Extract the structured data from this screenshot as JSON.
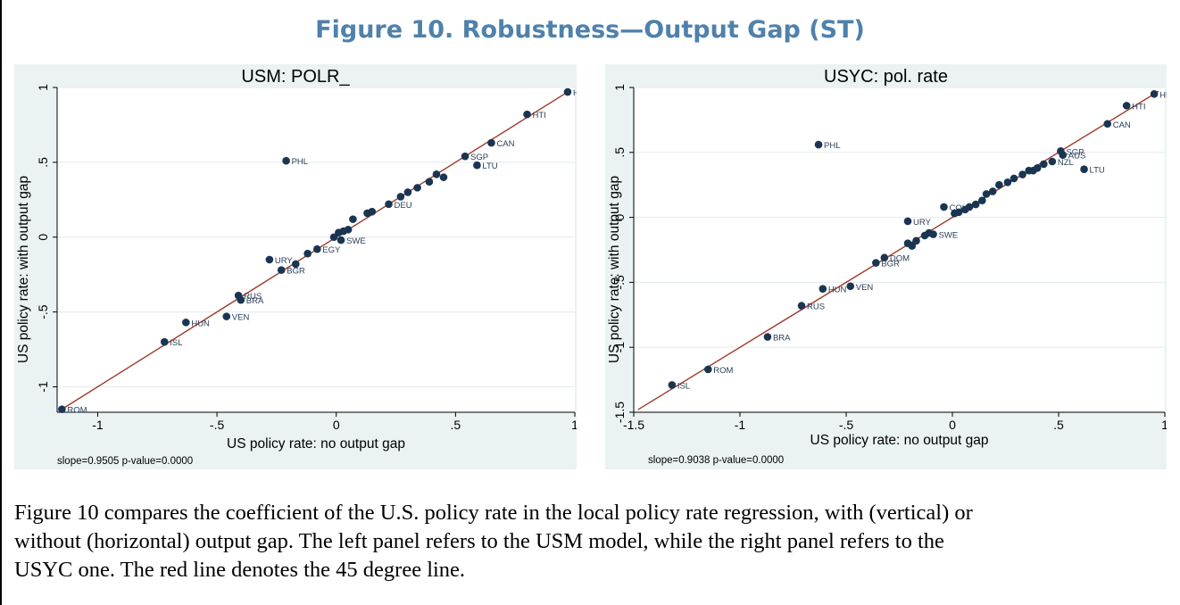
{
  "figure": {
    "title": "Figure 10. Robustness—Output Gap (ST)",
    "caption_lines": [
      "Figure 10 compares the coefficient of the U.S. policy rate in the local policy rate regression, with (vertical) or",
      "without (horizontal) output gap. The left panel refers to the USM model, while the right panel refers to the",
      "USYC one. The red line denotes the 45 degree line."
    ]
  },
  "colors": {
    "panel_bg": "#eaf2f3",
    "marker": "#1a3552",
    "fit_line": "#a03a2c",
    "title": "#4f81ab"
  },
  "chart_data": [
    {
      "type": "scatter",
      "title": "USM: POLR_",
      "xlabel": "US policy rate: no output gap",
      "ylabel": "US policy rate: with output gap",
      "xlim": [
        -1.17,
        1.0
      ],
      "ylim": [
        -1.17,
        1.0
      ],
      "xticks": [
        "-1",
        "-.5",
        "0",
        ".5",
        "1"
      ],
      "yticks": [
        "-1",
        "-.5",
        "0",
        ".5",
        "1"
      ],
      "xtick_values": [
        -1,
        -0.5,
        0,
        0.5,
        1
      ],
      "ytick_values": [
        -1,
        -0.5,
        0,
        0.5,
        1
      ],
      "grid": true,
      "reference_line": "45-degree",
      "note": "slope=0.9505 p-value=0.0000",
      "points": [
        {
          "label": "HKG",
          "x": 0.97,
          "y": 0.97
        },
        {
          "label": "HTI",
          "x": 0.8,
          "y": 0.82
        },
        {
          "label": "CAN",
          "x": 0.65,
          "y": 0.63
        },
        {
          "label": "SGP",
          "x": 0.54,
          "y": 0.54
        },
        {
          "label": "LTU",
          "x": 0.59,
          "y": 0.48
        },
        {
          "label": "PHL",
          "x": -0.21,
          "y": 0.51
        },
        {
          "label": "URY",
          "x": -0.28,
          "y": -0.15
        },
        {
          "label": "BGR",
          "x": -0.23,
          "y": -0.22
        },
        {
          "label": "RUS",
          "x": -0.41,
          "y": -0.39
        },
        {
          "label": "BRA",
          "x": -0.4,
          "y": -0.42
        },
        {
          "label": "VEN",
          "x": -0.46,
          "y": -0.53
        },
        {
          "label": "HUN",
          "x": -0.63,
          "y": -0.57
        },
        {
          "label": "ISL",
          "x": -0.72,
          "y": -0.7
        },
        {
          "label": "ROM",
          "x": -1.15,
          "y": -1.15
        },
        {
          "label": "EGY",
          "x": -0.08,
          "y": -0.08
        },
        {
          "label": "DEU",
          "x": 0.22,
          "y": 0.22
        },
        {
          "label": "SWE",
          "x": 0.02,
          "y": -0.02
        },
        {
          "label": "",
          "x": -0.12,
          "y": -0.11
        },
        {
          "label": "",
          "x": -0.17,
          "y": -0.18
        },
        {
          "label": "",
          "x": -0.01,
          "y": 0.0
        },
        {
          "label": "",
          "x": 0.01,
          "y": 0.03
        },
        {
          "label": "",
          "x": 0.03,
          "y": 0.04
        },
        {
          "label": "",
          "x": 0.05,
          "y": 0.05
        },
        {
          "label": "",
          "x": 0.07,
          "y": 0.12
        },
        {
          "label": "",
          "x": 0.13,
          "y": 0.16
        },
        {
          "label": "",
          "x": 0.15,
          "y": 0.17
        },
        {
          "label": "",
          "x": 0.27,
          "y": 0.27
        },
        {
          "label": "",
          "x": 0.3,
          "y": 0.3
        },
        {
          "label": "",
          "x": 0.34,
          "y": 0.33
        },
        {
          "label": "",
          "x": 0.39,
          "y": 0.37
        },
        {
          "label": "",
          "x": 0.42,
          "y": 0.42
        },
        {
          "label": "",
          "x": 0.45,
          "y": 0.4
        }
      ]
    },
    {
      "type": "scatter",
      "title": "USYC: pol. rate",
      "xlabel": "US policy rate: no output gap",
      "ylabel": "US policy rate: with output gap",
      "xlim": [
        -1.5,
        1.0
      ],
      "ylim": [
        -1.5,
        1.0
      ],
      "xticks": [
        "-1.5",
        "-1",
        "-.5",
        "0",
        ".5",
        "1"
      ],
      "yticks": [
        "-1.5",
        "-1",
        "-.5",
        "0",
        ".5",
        "1"
      ],
      "xtick_values": [
        -1.5,
        -1,
        -0.5,
        0,
        0.5,
        1
      ],
      "ytick_values": [
        -1.5,
        -1,
        -0.5,
        0,
        0.5,
        1
      ],
      "grid": true,
      "reference_line": "45-degree",
      "note": "slope=0.9038 p-value=0.0000",
      "points": [
        {
          "label": "HKG",
          "x": 0.95,
          "y": 0.95
        },
        {
          "label": "HTI",
          "x": 0.82,
          "y": 0.86
        },
        {
          "label": "CAN",
          "x": 0.73,
          "y": 0.72
        },
        {
          "label": "SGP",
          "x": 0.51,
          "y": 0.51
        },
        {
          "label": "AUS",
          "x": 0.52,
          "y": 0.48
        },
        {
          "label": "LTU",
          "x": 0.62,
          "y": 0.37
        },
        {
          "label": "NZL",
          "x": 0.47,
          "y": 0.43
        },
        {
          "label": "PHL",
          "x": -0.63,
          "y": 0.56
        },
        {
          "label": "URY",
          "x": -0.21,
          "y": -0.03
        },
        {
          "label": "DOM",
          "x": -0.32,
          "y": -0.31
        },
        {
          "label": "BGR",
          "x": -0.36,
          "y": -0.35
        },
        {
          "label": "VEN",
          "x": -0.48,
          "y": -0.53
        },
        {
          "label": "HUN",
          "x": -0.61,
          "y": -0.55
        },
        {
          "label": "RUS",
          "x": -0.71,
          "y": -0.68
        },
        {
          "label": "BRA",
          "x": -0.87,
          "y": -0.92
        },
        {
          "label": "ROM",
          "x": -1.15,
          "y": -1.17
        },
        {
          "label": "ISL",
          "x": -1.32,
          "y": -1.29
        },
        {
          "label": "SWE",
          "x": -0.09,
          "y": -0.13
        },
        {
          "label": "COL",
          "x": -0.04,
          "y": 0.08
        },
        {
          "label": "",
          "x": -0.11,
          "y": -0.12
        },
        {
          "label": "",
          "x": -0.13,
          "y": -0.14
        },
        {
          "label": "",
          "x": -0.17,
          "y": -0.18
        },
        {
          "label": "",
          "x": -0.19,
          "y": -0.22
        },
        {
          "label": "",
          "x": -0.21,
          "y": -0.2
        },
        {
          "label": "",
          "x": 0.01,
          "y": 0.03
        },
        {
          "label": "",
          "x": 0.03,
          "y": 0.04
        },
        {
          "label": "",
          "x": 0.06,
          "y": 0.06
        },
        {
          "label": "",
          "x": 0.08,
          "y": 0.08
        },
        {
          "label": "",
          "x": 0.11,
          "y": 0.1
        },
        {
          "label": "",
          "x": 0.14,
          "y": 0.13
        },
        {
          "label": "",
          "x": 0.16,
          "y": 0.18
        },
        {
          "label": "",
          "x": 0.19,
          "y": 0.2
        },
        {
          "label": "",
          "x": 0.22,
          "y": 0.25
        },
        {
          "label": "",
          "x": 0.26,
          "y": 0.27
        },
        {
          "label": "",
          "x": 0.29,
          "y": 0.3
        },
        {
          "label": "",
          "x": 0.33,
          "y": 0.33
        },
        {
          "label": "",
          "x": 0.36,
          "y": 0.36
        },
        {
          "label": "",
          "x": 0.38,
          "y": 0.36
        },
        {
          "label": "",
          "x": 0.4,
          "y": 0.38
        },
        {
          "label": "",
          "x": 0.43,
          "y": 0.41
        }
      ]
    }
  ]
}
